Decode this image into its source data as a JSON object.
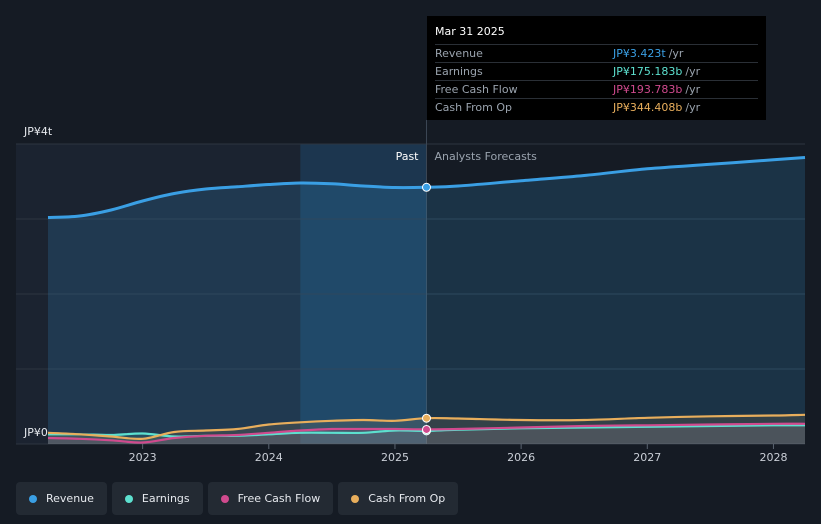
{
  "tooltip": {
    "date": "Mar 31 2025",
    "rows": [
      {
        "label": "Revenue",
        "value": "JP¥3.423t",
        "unit": "/yr",
        "color": "#3a9fe4"
      },
      {
        "label": "Earnings",
        "value": "JP¥175.183b",
        "unit": "/yr",
        "color": "#5de0cf"
      },
      {
        "label": "Free Cash Flow",
        "value": "JP¥193.783b",
        "unit": "/yr",
        "color": "#d04a8e"
      },
      {
        "label": "Cash From Op",
        "value": "JP¥344.408b",
        "unit": "/yr",
        "color": "#e8ae5c"
      }
    ]
  },
  "regions": {
    "past": "Past",
    "forecast": "Analysts Forecasts"
  },
  "legend": [
    {
      "label": "Revenue",
      "color": "#3a9fe4"
    },
    {
      "label": "Earnings",
      "color": "#5de0cf"
    },
    {
      "label": "Free Cash Flow",
      "color": "#d04a8e"
    },
    {
      "label": "Cash From Op",
      "color": "#e8ae5c"
    }
  ],
  "chart_data": {
    "type": "area",
    "y_unit": "JP¥ trillions",
    "ylim": [
      0,
      4
    ],
    "xlim": [
      2022.25,
      2028.25
    ],
    "y_tick_labels": [
      {
        "value": 4,
        "label": "JP¥4t"
      },
      {
        "value": 0,
        "label": "JP¥0"
      }
    ],
    "x_ticks": [
      2023,
      2024,
      2025,
      2026,
      2027,
      2028
    ],
    "grid": true,
    "past_end": 2025.25,
    "highlight_start": 2024.25,
    "series": [
      {
        "name": "Revenue",
        "color": "#3a9fe4",
        "filled": true,
        "points": [
          [
            2022.25,
            3.02
          ],
          [
            2022.5,
            3.04
          ],
          [
            2022.75,
            3.12
          ],
          [
            2023.0,
            3.24
          ],
          [
            2023.25,
            3.34
          ],
          [
            2023.5,
            3.4
          ],
          [
            2023.75,
            3.43
          ],
          [
            2024.0,
            3.46
          ],
          [
            2024.25,
            3.48
          ],
          [
            2024.5,
            3.47
          ],
          [
            2024.75,
            3.44
          ],
          [
            2025.0,
            3.42
          ],
          [
            2025.25,
            3.423
          ],
          [
            2025.5,
            3.44
          ],
          [
            2026.0,
            3.51
          ],
          [
            2026.5,
            3.58
          ],
          [
            2027.0,
            3.67
          ],
          [
            2027.5,
            3.73
          ],
          [
            2028.0,
            3.79
          ],
          [
            2028.25,
            3.82
          ]
        ]
      },
      {
        "name": "Earnings",
        "color": "#5de0cf",
        "filled": false,
        "points": [
          [
            2022.25,
            0.13
          ],
          [
            2022.5,
            0.13
          ],
          [
            2022.75,
            0.12
          ],
          [
            2023.0,
            0.14
          ],
          [
            2023.25,
            0.1
          ],
          [
            2023.5,
            0.11
          ],
          [
            2023.75,
            0.11
          ],
          [
            2024.0,
            0.13
          ],
          [
            2024.25,
            0.15
          ],
          [
            2024.5,
            0.15
          ],
          [
            2024.75,
            0.15
          ],
          [
            2025.0,
            0.18
          ],
          [
            2025.25,
            0.175
          ],
          [
            2025.5,
            0.19
          ],
          [
            2026.0,
            0.21
          ],
          [
            2026.5,
            0.22
          ],
          [
            2027.0,
            0.23
          ],
          [
            2027.5,
            0.24
          ],
          [
            2028.0,
            0.25
          ],
          [
            2028.25,
            0.25
          ]
        ]
      },
      {
        "name": "Free Cash Flow",
        "color": "#d04a8e",
        "filled": false,
        "points": [
          [
            2022.25,
            0.08
          ],
          [
            2022.5,
            0.07
          ],
          [
            2022.75,
            0.05
          ],
          [
            2023.0,
            0.02
          ],
          [
            2023.25,
            0.08
          ],
          [
            2023.5,
            0.11
          ],
          [
            2023.75,
            0.12
          ],
          [
            2024.0,
            0.15
          ],
          [
            2024.25,
            0.18
          ],
          [
            2024.5,
            0.2
          ],
          [
            2024.75,
            0.2
          ],
          [
            2025.0,
            0.2
          ],
          [
            2025.25,
            0.194
          ],
          [
            2025.5,
            0.2
          ],
          [
            2026.0,
            0.22
          ],
          [
            2026.5,
            0.24
          ],
          [
            2027.0,
            0.25
          ],
          [
            2027.5,
            0.26
          ],
          [
            2028.0,
            0.27
          ],
          [
            2028.25,
            0.27
          ]
        ]
      },
      {
        "name": "Cash From Op",
        "color": "#e8ae5c",
        "filled": false,
        "points": [
          [
            2022.25,
            0.15
          ],
          [
            2022.5,
            0.13
          ],
          [
            2022.75,
            0.1
          ],
          [
            2023.0,
            0.07
          ],
          [
            2023.25,
            0.16
          ],
          [
            2023.5,
            0.18
          ],
          [
            2023.75,
            0.2
          ],
          [
            2024.0,
            0.26
          ],
          [
            2024.25,
            0.29
          ],
          [
            2024.5,
            0.31
          ],
          [
            2024.75,
            0.32
          ],
          [
            2025.0,
            0.31
          ],
          [
            2025.25,
            0.344
          ],
          [
            2025.5,
            0.34
          ],
          [
            2026.0,
            0.32
          ],
          [
            2026.5,
            0.32
          ],
          [
            2027.0,
            0.35
          ],
          [
            2027.5,
            0.37
          ],
          [
            2028.0,
            0.38
          ],
          [
            2028.25,
            0.39
          ]
        ]
      }
    ]
  }
}
